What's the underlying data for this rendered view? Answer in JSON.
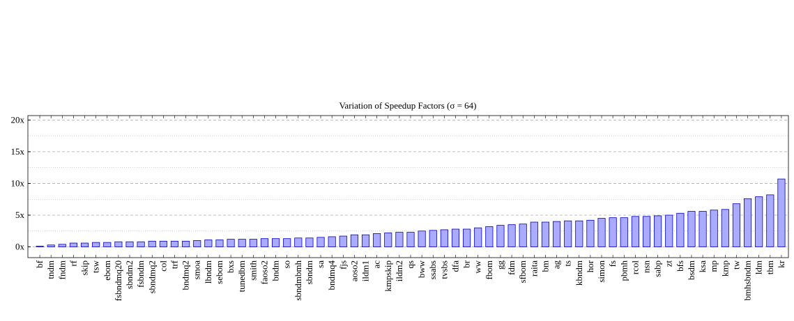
{
  "chart_data": {
    "type": "bar",
    "title": "Variation of Speedup Factors (σ = 64)",
    "categories": [
      "bf",
      "tndm",
      "fndm",
      "rf",
      "skip",
      "tsw",
      "ebom",
      "fsbndmq20",
      "sbndm2",
      "fsbndm",
      "sbndmq2",
      "col",
      "trf",
      "bndmq2",
      "smoa",
      "lbndm",
      "sebom",
      "bxs",
      "tunedbm",
      "smith",
      "faoso2",
      "bndm",
      "so",
      "sbndmbmh",
      "sbndm",
      "sa",
      "bndmq4",
      "fjs",
      "aoso2",
      "ildm1",
      "ac",
      "kmpskip",
      "ildm2",
      "qs",
      "bww",
      "ssabs",
      "tvsbs",
      "dfa",
      "br",
      "ww",
      "fbom",
      "gg",
      "fdm",
      "sfbom",
      "raita",
      "bm",
      "ag",
      "ts",
      "kbndm",
      "hor",
      "simon",
      "fs",
      "pbmh",
      "rcol",
      "nsn",
      "sabp",
      "zt",
      "bfs",
      "bsdm",
      "ksa",
      "mp",
      "kmp",
      "tw",
      "bmhsbndm",
      "ldm",
      "tbm",
      "kr"
    ],
    "values": [
      0.1,
      0.3,
      0.4,
      0.6,
      0.6,
      0.7,
      0.7,
      0.8,
      0.8,
      0.8,
      0.9,
      0.9,
      0.9,
      0.9,
      1.0,
      1.1,
      1.1,
      1.2,
      1.2,
      1.2,
      1.3,
      1.3,
      1.3,
      1.4,
      1.4,
      1.5,
      1.6,
      1.7,
      1.9,
      1.9,
      2.1,
      2.2,
      2.3,
      2.3,
      2.5,
      2.6,
      2.7,
      2.8,
      2.8,
      3.0,
      3.2,
      3.4,
      3.5,
      3.6,
      3.9,
      3.9,
      4.0,
      4.1,
      4.1,
      4.2,
      4.5,
      4.6,
      4.6,
      4.8,
      4.8,
      4.9,
      5.0,
      5.3,
      5.6,
      5.6,
      5.8,
      5.9,
      6.8,
      7.6,
      7.9,
      8.2,
      10.7
    ],
    "color": "#aaaaff",
    "edge_color": "#0000cc",
    "ylim": [
      -1.7,
      20.7
    ],
    "yticks": [
      {
        "value": 0,
        "label": "0x"
      },
      {
        "value": 5,
        "label": "5x"
      },
      {
        "value": 10,
        "label": "10x"
      },
      {
        "value": 15,
        "label": "15x"
      },
      {
        "value": 20,
        "label": "20x"
      }
    ],
    "minor_yticks": [
      2.5,
      7.5,
      12.5,
      17.5
    ],
    "grid": true
  }
}
